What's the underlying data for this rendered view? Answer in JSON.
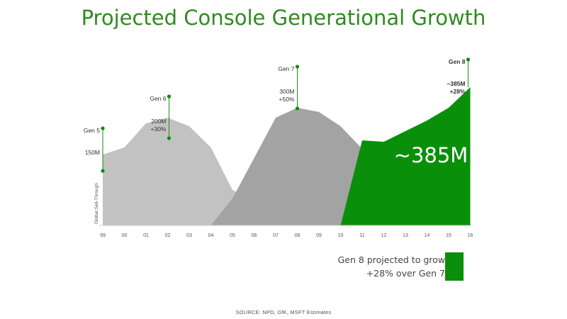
{
  "title": "Projected Console Generational Growth",
  "source": "SOURCE: NPD, GfK, MSFT Estimates",
  "legend": {
    "line1": "Gen 8 projected to grow",
    "line2": "+28% over Gen 7",
    "color": "#0a8f0a"
  },
  "big_label": "~385M",
  "chart_data": {
    "type": "area",
    "title": "Projected Console Generational Growth",
    "ylabel": "Global Sell-Through",
    "xlabel": "",
    "x": [
      "99",
      "00",
      "01",
      "02",
      "03",
      "04",
      "05",
      "06",
      "07",
      "08",
      "09",
      "10",
      "11",
      "12",
      "13",
      "14",
      "15",
      "16"
    ],
    "grid": false,
    "series": [
      {
        "name": "Gen 5",
        "color": "#dadada",
        "values": [
          100,
          60,
          28,
          10,
          2,
          0,
          0,
          0,
          0,
          0,
          0,
          0,
          0,
          0,
          0,
          0,
          0,
          0
        ]
      },
      {
        "name": "Gen 6",
        "color": "#c2c2c2",
        "values": [
          100,
          110,
          144,
          152,
          140,
          110,
          50,
          35,
          15,
          3,
          0,
          0,
          0,
          0,
          0,
          0,
          0,
          0
        ]
      },
      {
        "name": "Gen 7",
        "color": "#a3a3a3",
        "values": [
          0,
          0,
          0,
          0,
          0,
          0,
          38,
          95,
          152,
          166,
          160,
          140,
          108,
          72,
          30,
          8,
          1,
          0
        ]
      },
      {
        "name": "Gen 8",
        "color": "#0a8f0a",
        "values": [
          0,
          0,
          0,
          0,
          0,
          0,
          0,
          0,
          0,
          0,
          0,
          0,
          120,
          118,
          133,
          148,
          166,
          195
        ]
      }
    ],
    "annotations": [
      {
        "series": "Gen 5",
        "label": "Gen 5",
        "value": "150M",
        "x": "99"
      },
      {
        "series": "Gen 6",
        "label": "Gen 6",
        "value": "200M",
        "change": "+30%",
        "x": "02"
      },
      {
        "series": "Gen 7",
        "label": "Gen 7",
        "value": "300M",
        "change": "+50%",
        "x": "08"
      },
      {
        "series": "Gen 8",
        "label": "Gen 8",
        "value": "~385M",
        "change": "+28%",
        "x": "16"
      }
    ]
  }
}
